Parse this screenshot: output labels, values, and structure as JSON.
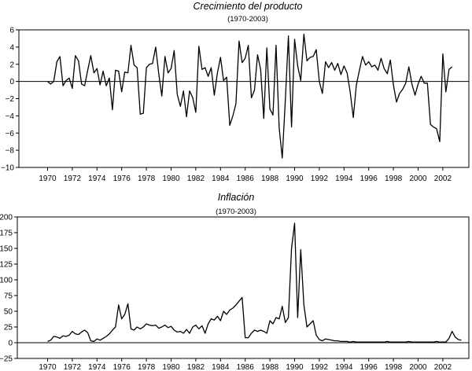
{
  "chart_data": [
    {
      "type": "line",
      "title": "Crecimiento del producto",
      "subtitle": "(1970-2003)",
      "xlabel": "",
      "ylabel": "",
      "ylim": [
        -10,
        6
      ],
      "yticks": [
        "6",
        "4",
        "2",
        "0",
        "−2",
        "−4",
        "−6",
        "−8",
        "−10"
      ],
      "xticks": [
        "1970",
        "1972",
        "1974",
        "1976",
        "1978",
        "1980",
        "1982",
        "1984",
        "1986",
        "1988",
        "1990",
        "1992",
        "1994",
        "1996",
        "1998",
        "2000",
        "2002"
      ],
      "x_start": 1970,
      "x_step": 0.25,
      "grid": false,
      "values": [
        0.0,
        -0.3,
        0.0,
        2.3,
        2.9,
        -0.5,
        0.1,
        0.4,
        -0.8,
        3.0,
        2.4,
        -0.3,
        -0.5,
        1.3,
        3.0,
        1.0,
        1.5,
        -0.4,
        1.2,
        -0.5,
        0.4,
        -3.3,
        1.3,
        1.2,
        -1.2,
        1.1,
        1.0,
        4.2,
        1.9,
        1.6,
        -3.8,
        -3.7,
        1.6,
        2.0,
        2.1,
        4.0,
        0.9,
        -1.7,
        2.9,
        1.0,
        1.5,
        3.6,
        -1.5,
        -2.9,
        -1.1,
        -4.1,
        -1.1,
        -1.9,
        -3.6,
        4.1,
        1.4,
        1.6,
        0.6,
        1.6,
        -1.6,
        1.0,
        2.8,
        0.1,
        0.5,
        -5.1,
        -4.0,
        -2.6,
        4.7,
        2.2,
        2.7,
        4.2,
        -1.9,
        -1.0,
        3.1,
        1.4,
        -4.3,
        3.9,
        -3.2,
        -3.9,
        4.2,
        -5.4,
        -8.9,
        -2.2,
        5.3,
        -5.3,
        4.9,
        1.8,
        0.1,
        5.5,
        2.4,
        2.8,
        2.9,
        3.7,
        0.0,
        -1.4,
        2.3,
        1.6,
        2.2,
        1.3,
        2.1,
        0.8,
        1.8,
        1.0,
        -1.2,
        -4.2,
        -0.4,
        1.3,
        2.9,
        1.9,
        2.3,
        1.7,
        1.9,
        1.3,
        2.7,
        1.5,
        0.9,
        2.5,
        -0.4,
        -2.4,
        -1.4,
        -0.9,
        -0.2,
        1.7,
        -0.3,
        -1.6,
        -0.3,
        0.6,
        -0.2,
        -0.2,
        -5.0,
        -5.3,
        -5.5,
        -7.0,
        3.2,
        -1.2,
        1.4,
        1.7
      ]
    },
    {
      "type": "line",
      "title": "Inflación",
      "subtitle": "(1970-2003)",
      "xlabel": "",
      "ylabel": "",
      "ylim": [
        -25,
        200
      ],
      "yticks": [
        "200",
        "175",
        "150",
        "125",
        "100",
        "75",
        "50",
        "25",
        "0",
        "−25"
      ],
      "xticks": [
        "1970",
        "1972",
        "1974",
        "1976",
        "1978",
        "1980",
        "1982",
        "1984",
        "1986",
        "1988",
        "1990",
        "1992",
        "1994",
        "1996",
        "1998",
        "2000",
        "2002"
      ],
      "x_start": 1970,
      "x_step": 0.25,
      "grid": false,
      "values": [
        2,
        4,
        10,
        9,
        7,
        11,
        10,
        12,
        18,
        14,
        13,
        17,
        20,
        16,
        3,
        2,
        6,
        4,
        7,
        10,
        14,
        20,
        25,
        60,
        38,
        45,
        62,
        22,
        20,
        25,
        22,
        25,
        30,
        28,
        27,
        28,
        23,
        25,
        28,
        24,
        26,
        20,
        17,
        18,
        15,
        21,
        15,
        25,
        28,
        22,
        27,
        15,
        30,
        38,
        36,
        42,
        35,
        50,
        45,
        52,
        55,
        60,
        66,
        72,
        8,
        8,
        15,
        20,
        18,
        20,
        18,
        15,
        35,
        30,
        40,
        38,
        58,
        32,
        40,
        150,
        190,
        40,
        148,
        60,
        25,
        30,
        35,
        12,
        5,
        3,
        6,
        5,
        4,
        3,
        3,
        2,
        2,
        2,
        1,
        2,
        1,
        1,
        1,
        1,
        1,
        1,
        1,
        1,
        1,
        1,
        2,
        1,
        1,
        1,
        1,
        1,
        1,
        2,
        1,
        1,
        1,
        1,
        1,
        1,
        1,
        1,
        2,
        1,
        1,
        1,
        7,
        18,
        9,
        5,
        4
      ]
    }
  ]
}
